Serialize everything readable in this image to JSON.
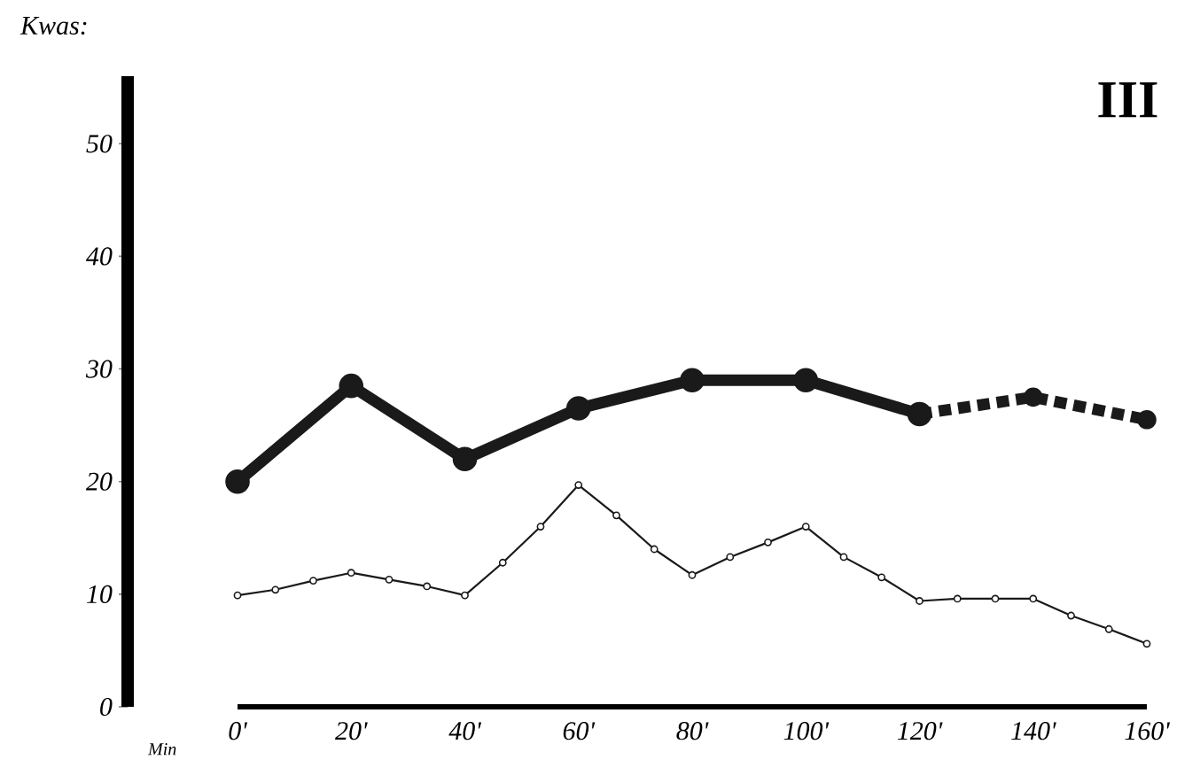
{
  "chart_data": {
    "type": "line",
    "ylabel": "Kwas:",
    "xlabel": "Min",
    "annotations": [
      "III"
    ],
    "xlim": [
      0,
      160
    ],
    "ylim": [
      0,
      56
    ],
    "xticks": [
      {
        "value": 0,
        "label": "0'"
      },
      {
        "value": 20,
        "label": "20'"
      },
      {
        "value": 40,
        "label": "40'"
      },
      {
        "value": 60,
        "label": "60'"
      },
      {
        "value": 80,
        "label": "80'"
      },
      {
        "value": 100,
        "label": "100'"
      },
      {
        "value": 120,
        "label": "120'"
      },
      {
        "value": 140,
        "label": "140'"
      },
      {
        "value": 160,
        "label": "160'"
      }
    ],
    "yticks": [
      0,
      10,
      20,
      30,
      40,
      50
    ],
    "grid": false,
    "series": [
      {
        "color": "#1a1a1a",
        "marker": "circle",
        "line_style": "solid",
        "x": [
          0,
          20,
          40,
          60,
          80,
          100,
          120
        ],
        "values": [
          20,
          28.5,
          22,
          26.5,
          29,
          29,
          26
        ]
      },
      {
        "color": "#1a1a1a",
        "marker": "circle",
        "line_style": "dashed",
        "x": [
          120,
          140,
          160
        ],
        "values": [
          26,
          27.5,
          25.5
        ]
      },
      {
        "color": "#1a1a1a",
        "marker": "circle",
        "line_style": "solid",
        "x": [
          0,
          6.67,
          13.33,
          20,
          26.67,
          33.33,
          40,
          46.67,
          53.33,
          60,
          66.67,
          73.33,
          80,
          86.67,
          93.33,
          100,
          106.67,
          113.33,
          120,
          126.67,
          133.33,
          140,
          146.67,
          153.33,
          160
        ],
        "values": [
          9.9,
          10.4,
          11.2,
          11.9,
          11.3,
          10.7,
          9.9,
          12.8,
          16,
          19.7,
          17,
          14,
          11.7,
          13.3,
          14.6,
          16,
          13.3,
          11.5,
          9.4,
          9.6,
          9.6,
          9.6,
          8.1,
          6.9,
          5.6
        ]
      }
    ]
  }
}
